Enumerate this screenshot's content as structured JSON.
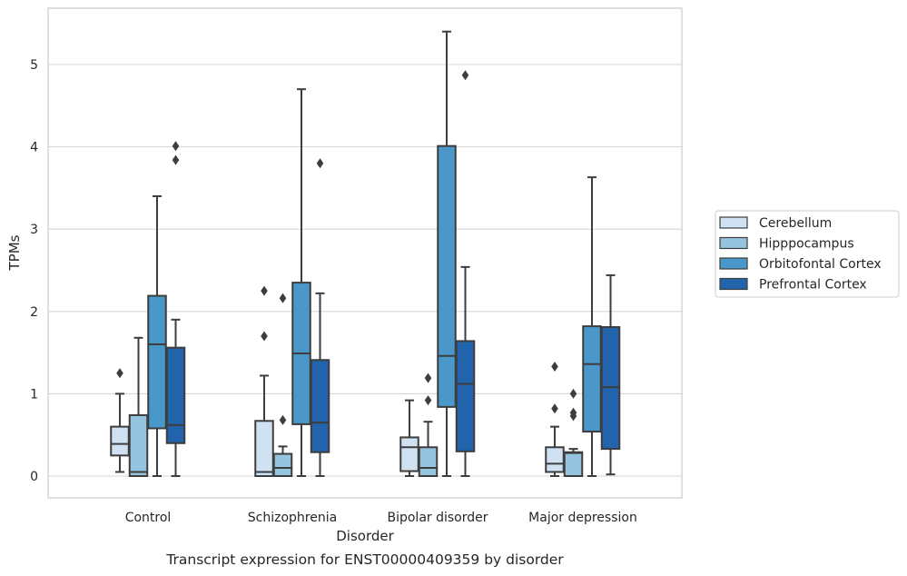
{
  "chart_data": {
    "type": "box",
    "xlabel": "Disorder",
    "ylabel": "TPMs",
    "caption": "Transcript expression for ENST00000409359 by disorder",
    "ylim": [
      -0.26,
      5.68
    ],
    "yticks": [
      0,
      1,
      2,
      3,
      4,
      5
    ],
    "grid": "horizontal",
    "legend_position": "right",
    "categories": [
      "Control",
      "Schizophrenia",
      "Bipolar disorder",
      "Major depression"
    ],
    "series": [
      {
        "name": "Cerebellum",
        "color": "#d0e1f2",
        "boxes": [
          {
            "whisker_low": 0.05,
            "q1": 0.25,
            "median": 0.39,
            "q3": 0.6,
            "whisker_high": 1.0,
            "outliers": [
              1.25
            ]
          },
          {
            "whisker_low": 0.0,
            "q1": 0.0,
            "median": 0.05,
            "q3": 0.67,
            "whisker_high": 1.22,
            "outliers": [
              1.7,
              2.25
            ]
          },
          {
            "whisker_low": 0.0,
            "q1": 0.06,
            "median": 0.35,
            "q3": 0.47,
            "whisker_high": 0.92,
            "outliers": []
          },
          {
            "whisker_low": 0.0,
            "q1": 0.05,
            "median": 0.15,
            "q3": 0.35,
            "whisker_high": 0.6,
            "outliers": [
              0.82,
              1.33
            ]
          }
        ]
      },
      {
        "name": "Hipppocampus",
        "color": "#94c4df",
        "boxes": [
          {
            "whisker_low": 0.0,
            "q1": 0.0,
            "median": 0.05,
            "q3": 0.74,
            "whisker_high": 1.68,
            "outliers": []
          },
          {
            "whisker_low": 0.0,
            "q1": 0.0,
            "median": 0.1,
            "q3": 0.27,
            "whisker_high": 0.36,
            "outliers": [
              0.68,
              2.16
            ]
          },
          {
            "whisker_low": 0.0,
            "q1": 0.0,
            "median": 0.1,
            "q3": 0.35,
            "whisker_high": 0.66,
            "outliers": [
              0.92,
              1.19
            ]
          },
          {
            "whisker_low": 0.0,
            "q1": 0.0,
            "median": 0.28,
            "q3": 0.29,
            "whisker_high": 0.33,
            "outliers": [
              0.73,
              0.77,
              1.0
            ]
          }
        ]
      },
      {
        "name": "Orbitofontal Cortex",
        "color": "#4a98c9",
        "boxes": [
          {
            "whisker_low": 0.0,
            "q1": 0.58,
            "median": 1.6,
            "q3": 2.19,
            "whisker_high": 3.4,
            "outliers": []
          },
          {
            "whisker_low": 0.0,
            "q1": 0.63,
            "median": 1.49,
            "q3": 2.35,
            "whisker_high": 4.7,
            "outliers": []
          },
          {
            "whisker_low": 0.0,
            "q1": 0.84,
            "median": 1.46,
            "q3": 4.01,
            "whisker_high": 5.4,
            "outliers": []
          },
          {
            "whisker_low": 0.0,
            "q1": 0.54,
            "median": 1.36,
            "q3": 1.82,
            "whisker_high": 3.63,
            "outliers": []
          }
        ]
      },
      {
        "name": "Prefrontal Cortex",
        "color": "#2164ab",
        "boxes": [
          {
            "whisker_low": 0.0,
            "q1": 0.4,
            "median": 0.62,
            "q3": 1.56,
            "whisker_high": 1.9,
            "outliers": [
              3.84,
              4.01
            ]
          },
          {
            "whisker_low": 0.0,
            "q1": 0.29,
            "median": 0.65,
            "q3": 1.41,
            "whisker_high": 2.22,
            "outliers": [
              3.8
            ]
          },
          {
            "whisker_low": 0.0,
            "q1": 0.3,
            "median": 1.12,
            "q3": 1.64,
            "whisker_high": 2.54,
            "outliers": [
              4.87
            ]
          },
          {
            "whisker_low": 0.02,
            "q1": 0.33,
            "median": 1.08,
            "q3": 1.81,
            "whisker_high": 2.44,
            "outliers": []
          }
        ]
      }
    ]
  }
}
